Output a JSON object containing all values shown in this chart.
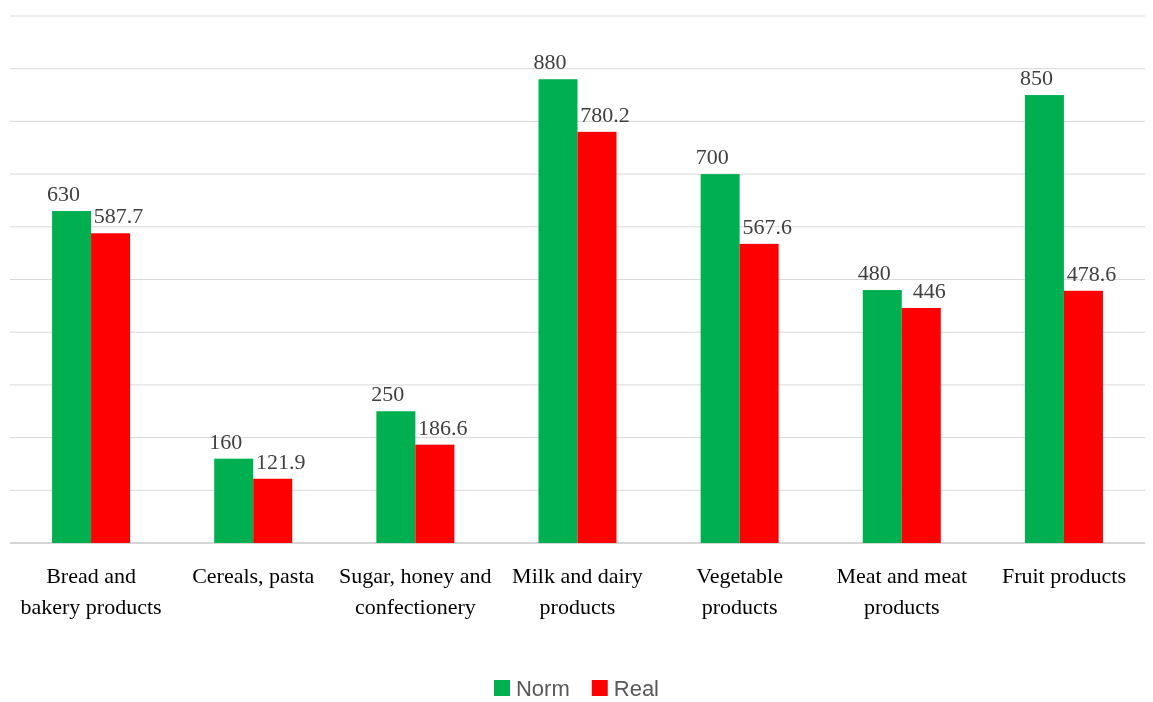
{
  "chart_data": {
    "type": "bar",
    "categories": [
      "Bread and bakery products",
      "Cereals, pasta",
      "Sugar, honey and confectionery",
      "Milk and dairy products",
      "Vegetable products",
      "Meat and meat products",
      "Fruit products"
    ],
    "series": [
      {
        "name": "Norm",
        "color": "#00b050",
        "values": [
          630,
          160,
          250,
          880,
          700,
          480,
          850
        ]
      },
      {
        "name": "Real",
        "color": "#ff0000",
        "values": [
          587.7,
          121.9,
          186.6,
          780.2,
          567.6,
          446,
          478.6
        ]
      }
    ],
    "ylim": [
      0,
      1000
    ],
    "yticks": [
      {
        "value": 0,
        "label": null
      },
      {
        "value": 100,
        "label": null
      },
      {
        "value": 200,
        "label": null
      },
      {
        "value": 300,
        "label": null
      },
      {
        "value": 400,
        "label": null
      },
      {
        "value": 500,
        "label": null
      },
      {
        "value": 600,
        "label": null
      },
      {
        "value": 700,
        "label": null
      },
      {
        "value": 800,
        "label": null
      },
      {
        "value": 900,
        "label": null
      },
      {
        "value": 1000,
        "label": null
      }
    ],
    "grid": "y",
    "data_labels": true,
    "legend": "bottom"
  }
}
